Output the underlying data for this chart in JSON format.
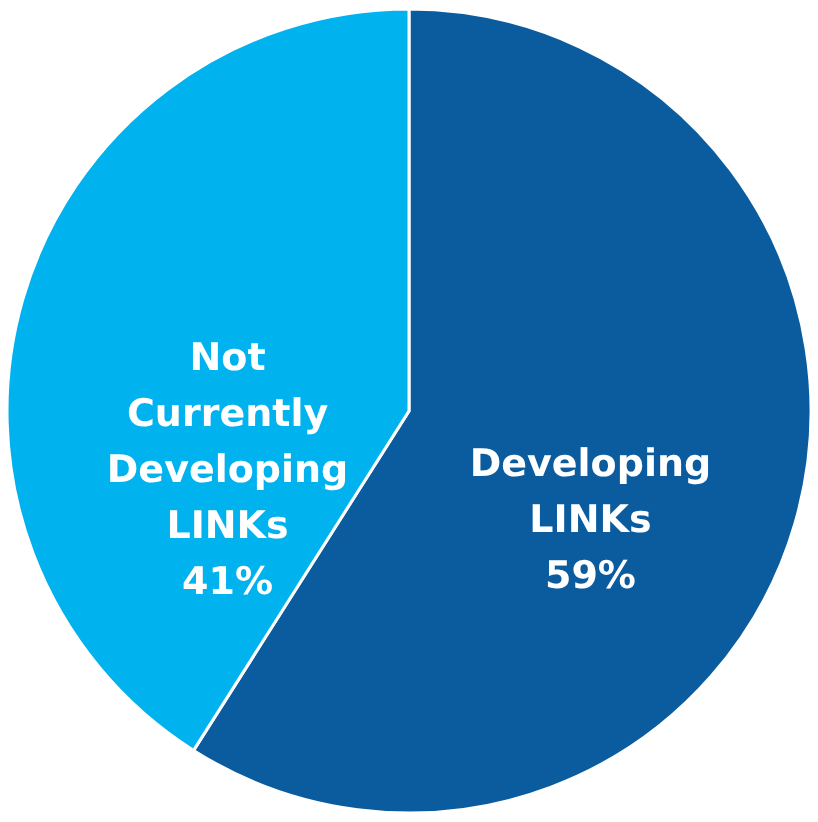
{
  "chart_data": {
    "type": "pie",
    "categories": [
      "Developing LINKs",
      "Not Currently Developing LINKs"
    ],
    "values": [
      59,
      41
    ],
    "colors": [
      "#0b5c9e",
      "#00b2ee"
    ],
    "value_labels": [
      "59%",
      "41%"
    ]
  }
}
